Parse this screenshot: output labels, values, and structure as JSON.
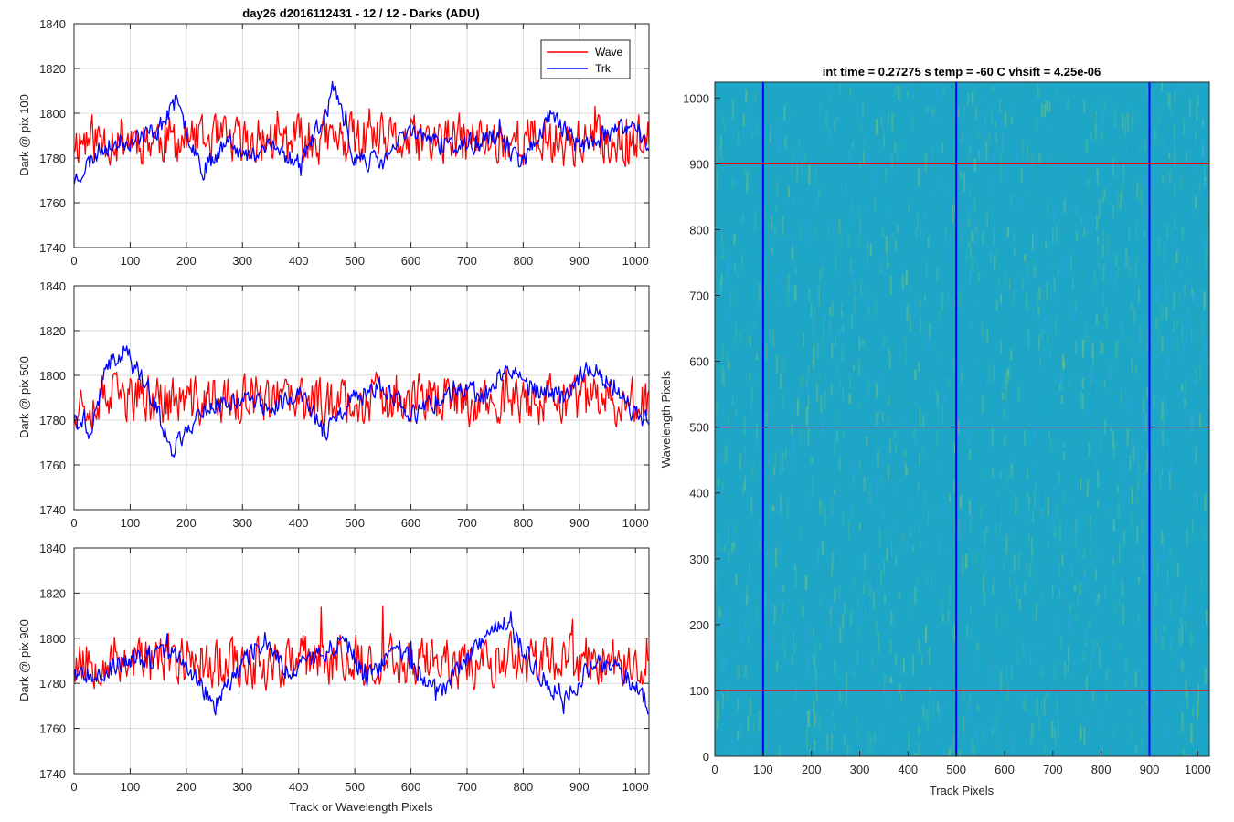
{
  "colors": {
    "wave": "#ff0000",
    "trk": "#0000ff",
    "grid": "#d9d9d9",
    "axis": "#262626"
  },
  "chart_data": [
    {
      "type": "line",
      "title": "day26 d2016112431 - 12 / 12 - Darks (ADU)",
      "xlabel": "",
      "ylabel": "Dark @ pix 100",
      "xlim": [
        0,
        1024
      ],
      "ylim": [
        1740,
        1840
      ],
      "xticks": [
        "0",
        "100",
        "200",
        "300",
        "400",
        "500",
        "600",
        "700",
        "800",
        "900",
        "1000"
      ],
      "yticks": [
        "1740",
        "1760",
        "1780",
        "1800",
        "1820",
        "1840"
      ],
      "grid": true,
      "legend": {
        "location": "top-right",
        "entries": [
          "Wave",
          "Trk"
        ]
      },
      "series": [
        {
          "name": "Wave",
          "color": "#ff0000",
          "mean": 1788,
          "noise": 10,
          "seed": 11,
          "x": [
            0,
            100,
            200,
            300,
            400,
            500,
            600,
            700,
            800,
            900,
            1024
          ],
          "y": [
            1788,
            1789,
            1788,
            1787,
            1788,
            1788,
            1787,
            1788,
            1788,
            1787,
            1788
          ]
        },
        {
          "name": "Trk",
          "color": "#0000ff",
          "mean": 1785,
          "noise": 4,
          "seed": 23,
          "x": [
            0,
            50,
            100,
            150,
            180,
            230,
            280,
            300,
            350,
            400,
            450,
            460,
            500,
            550,
            600,
            650,
            700,
            750,
            800,
            850,
            900,
            950,
            1000,
            1024
          ],
          "y": [
            1770,
            1785,
            1788,
            1793,
            1805,
            1775,
            1790,
            1780,
            1785,
            1778,
            1800,
            1812,
            1780,
            1778,
            1793,
            1786,
            1785,
            1790,
            1778,
            1800,
            1785,
            1790,
            1795,
            1783
          ]
        }
      ]
    },
    {
      "type": "line",
      "title": "",
      "xlabel": "",
      "ylabel": "Dark @ pix 500",
      "xlim": [
        0,
        1024
      ],
      "ylim": [
        1740,
        1840
      ],
      "xticks": [
        "0",
        "100",
        "200",
        "300",
        "400",
        "500",
        "600",
        "700",
        "800",
        "900",
        "1000"
      ],
      "yticks": [
        "1740",
        "1760",
        "1780",
        "1800",
        "1820",
        "1840"
      ],
      "grid": true,
      "series": [
        {
          "name": "Wave",
          "color": "#ff0000",
          "mean": 1789,
          "noise": 10,
          "seed": 37,
          "x": [
            0,
            100,
            200,
            300,
            400,
            500,
            600,
            700,
            800,
            900,
            1024
          ],
          "y": [
            1788,
            1790,
            1788,
            1789,
            1788,
            1789,
            1790,
            1788,
            1789,
            1788,
            1789
          ]
        },
        {
          "name": "Trk",
          "color": "#0000ff",
          "mean": 1787,
          "noise": 4,
          "seed": 41,
          "x": [
            0,
            30,
            60,
            90,
            130,
            175,
            230,
            300,
            350,
            400,
            450,
            500,
            550,
            600,
            650,
            700,
            730,
            770,
            820,
            870,
            920,
            950,
            1000,
            1024
          ],
          "y": [
            1780,
            1775,
            1805,
            1812,
            1795,
            1767,
            1785,
            1790,
            1786,
            1792,
            1775,
            1790,
            1795,
            1782,
            1789,
            1793,
            1790,
            1805,
            1793,
            1790,
            1805,
            1796,
            1782,
            1780
          ]
        }
      ]
    },
    {
      "type": "line",
      "title": "",
      "xlabel": "Track or Wavelength Pixels",
      "ylabel": "Dark @ pix 900",
      "xlim": [
        0,
        1024
      ],
      "ylim": [
        1740,
        1840
      ],
      "xticks": [
        "0",
        "100",
        "200",
        "300",
        "400",
        "500",
        "600",
        "700",
        "800",
        "900",
        "1000"
      ],
      "yticks": [
        "1740",
        "1760",
        "1780",
        "1800",
        "1820",
        "1840"
      ],
      "grid": true,
      "series": [
        {
          "name": "Wave",
          "color": "#ff0000",
          "mean": 1790,
          "noise": 10,
          "seed": 53,
          "x": [
            0,
            100,
            200,
            300,
            400,
            500,
            600,
            700,
            800,
            900,
            1024
          ],
          "y": [
            1790,
            1791,
            1790,
            1789,
            1790,
            1791,
            1790,
            1789,
            1790,
            1790,
            1789
          ]
        },
        {
          "name": "Trk",
          "color": "#0000ff",
          "mean": 1787,
          "noise": 4,
          "seed": 67,
          "x": [
            0,
            50,
            100,
            180,
            220,
            250,
            300,
            340,
            380,
            420,
            480,
            520,
            580,
            650,
            700,
            760,
            800,
            850,
            880,
            930,
            980,
            1024
          ],
          "y": [
            1785,
            1785,
            1790,
            1793,
            1782,
            1768,
            1790,
            1800,
            1785,
            1790,
            1800,
            1782,
            1795,
            1775,
            1790,
            1808,
            1795,
            1778,
            1775,
            1790,
            1785,
            1770
          ]
        }
      ]
    },
    {
      "type": "heatmap",
      "title": "int time = 0.27275 s   temp = -60 C   vhsift = 4.25e-06",
      "xlabel": "Track Pixels",
      "ylabel": "Wavelength Pixels",
      "xlim": [
        0,
        1024
      ],
      "ylim": [
        0,
        1024
      ],
      "xticks": [
        "0",
        "100",
        "200",
        "300",
        "400",
        "500",
        "600",
        "700",
        "800",
        "900",
        "1000"
      ],
      "yticks": [
        "0",
        "100",
        "200",
        "300",
        "400",
        "500",
        "600",
        "700",
        "800",
        "900",
        "1000"
      ],
      "colormap": "parula",
      "base_color": "#1ea6c7",
      "vertical_lines": {
        "color": "#0000ff",
        "x": [
          100,
          500,
          900
        ]
      },
      "horizontal_lines": {
        "color": "#ff0000",
        "y": [
          100,
          500,
          900
        ]
      }
    }
  ]
}
